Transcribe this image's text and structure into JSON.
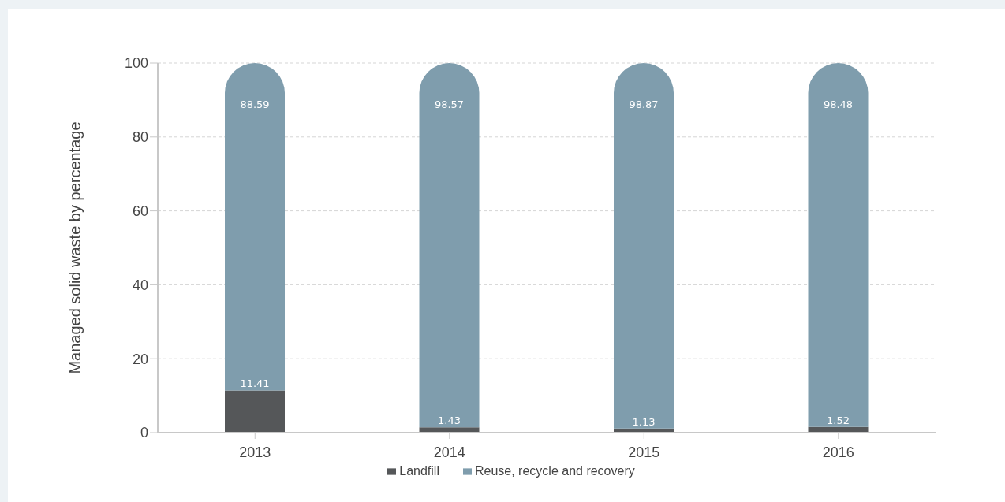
{
  "chart_data": {
    "type": "bar",
    "stacked": true,
    "ylabel": "Managed solid waste by percentage",
    "categories": [
      "2013",
      "2014",
      "2015",
      "2016"
    ],
    "series": [
      {
        "name": "Landfill",
        "color": "#555759",
        "values": [
          11.41,
          1.43,
          1.13,
          1.52
        ]
      },
      {
        "name": "Reuse, recycle and recovery",
        "color": "#7f9dad",
        "values": [
          88.59,
          98.57,
          98.87,
          98.48
        ]
      }
    ],
    "ylim": [
      0,
      100
    ],
    "yticks": [
      0,
      20,
      40,
      60,
      80,
      100
    ],
    "grid": "y",
    "legend": "bottom",
    "data_labels": true
  }
}
